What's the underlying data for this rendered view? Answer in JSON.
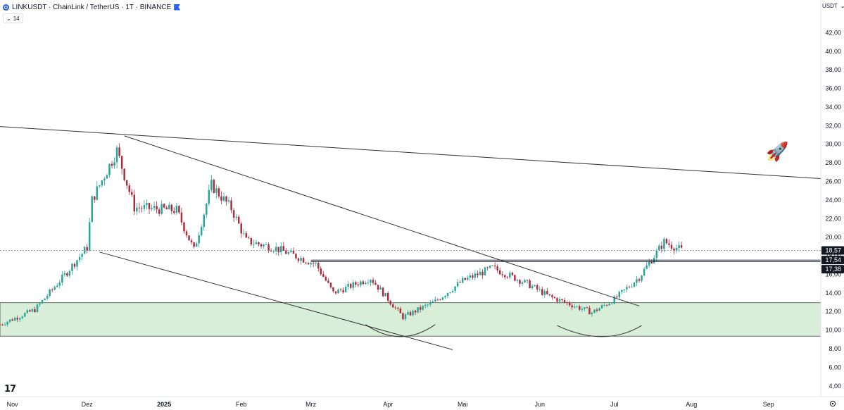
{
  "header": {
    "symbol_title": "LINKUSDT · ChainLink / TetherUS · 1T · BINANCE",
    "indicator_value": "14",
    "currency": "USDT"
  },
  "icons": {
    "symbol": "chainlink-logo-icon",
    "flag": "flag-icon",
    "collapse": "chevron-down-icon",
    "currency_dropdown": "chevron-down-icon",
    "rocket": "rocket-emoji-icon",
    "logo": "tradingview-logo-icon",
    "settings": "gear-icon"
  },
  "logo_text": "17",
  "colors": {
    "up": "#26a69a",
    "down": "#ab2b3c",
    "zone": "#d9eed9",
    "trendline": "#333333",
    "grid_axis": "#787b86"
  },
  "chart_data": {
    "type": "candlestick",
    "y_unit": "USDT",
    "y_ticks": [
      "42,00",
      "40,00",
      "38,00",
      "36,00",
      "34,00",
      "32,00",
      "30,00",
      "28,00",
      "26,00",
      "24,00",
      "22,00",
      "20,00",
      "18,00",
      "16,00",
      "14,00",
      "12,00",
      "10,00",
      "8,00",
      "6,00",
      "4,00"
    ],
    "y_range": [
      3.0,
      44.0
    ],
    "x_labels": [
      "Nov",
      "Dez",
      "2025",
      "Feb",
      "Mrz",
      "Apr",
      "Mai",
      "Jun",
      "Jul",
      "Aug",
      "Sep"
    ],
    "x_range": [
      "2024-10-27",
      "2025-09-22"
    ],
    "price_labels": [
      {
        "value": 18.57,
        "text": "18,57",
        "role": "current"
      },
      {
        "value": 17.54,
        "text": "17,54",
        "role": "level"
      },
      {
        "value": 17.38,
        "text": "17,38",
        "role": "level"
      }
    ],
    "support_zone": {
      "from": 9.35,
      "to": 12.95
    },
    "horizontal_levels": [
      17.54,
      17.38
    ],
    "trendlines": [
      {
        "from": [
          "2024-10-27",
          31.9
        ],
        "to": [
          "2025-09-22",
          26.3
        ]
      },
      {
        "from": [
          "2024-12-16",
          30.9
        ],
        "to": [
          "2025-07-11",
          12.6
        ]
      },
      {
        "from": [
          "2024-12-06",
          18.4
        ],
        "to": [
          "2025-04-27",
          7.9
        ]
      }
    ],
    "cup_arcs": [
      {
        "from": [
          "2025-03-23",
          10.6
        ],
        "bottom": [
          "2025-04-06",
          9.3
        ],
        "to": [
          "2025-04-20",
          10.6
        ]
      },
      {
        "from": [
          "2025-06-08",
          10.5
        ],
        "bottom": [
          "2025-06-27",
          9.3
        ],
        "to": [
          "2025-07-12",
          10.5
        ]
      }
    ],
    "key_prices": [
      {
        "date": "2024-10-27",
        "close": 10.6
      },
      {
        "date": "2024-11-10",
        "close": 12.2
      },
      {
        "date": "2024-11-21",
        "close": 15.6
      },
      {
        "date": "2024-12-01",
        "close": 18.9
      },
      {
        "date": "2024-12-03",
        "close": 24.0
      },
      {
        "date": "2024-12-13",
        "close": 29.3
      },
      {
        "date": "2024-12-20",
        "close": 23.2
      },
      {
        "date": "2025-01-06",
        "close": 22.9
      },
      {
        "date": "2025-01-13",
        "close": 18.6
      },
      {
        "date": "2025-01-20",
        "close": 25.6
      },
      {
        "date": "2025-01-28",
        "close": 23.1
      },
      {
        "date": "2025-02-03",
        "close": 19.6
      },
      {
        "date": "2025-02-15",
        "close": 18.8
      },
      {
        "date": "2025-03-03",
        "close": 17.1
      },
      {
        "date": "2025-03-10",
        "close": 14.0
      },
      {
        "date": "2025-03-25",
        "close": 15.6
      },
      {
        "date": "2025-04-07",
        "close": 11.4
      },
      {
        "date": "2025-04-20",
        "close": 13.1
      },
      {
        "date": "2025-05-01",
        "close": 15.3
      },
      {
        "date": "2025-05-13",
        "close": 16.7
      },
      {
        "date": "2025-05-27",
        "close": 15.0
      },
      {
        "date": "2025-06-05",
        "close": 13.6
      },
      {
        "date": "2025-06-22",
        "close": 11.9
      },
      {
        "date": "2025-07-01",
        "close": 13.3
      },
      {
        "date": "2025-07-11",
        "close": 15.7
      },
      {
        "date": "2025-07-21",
        "close": 19.5
      },
      {
        "date": "2025-07-28",
        "close": 18.6
      }
    ]
  }
}
